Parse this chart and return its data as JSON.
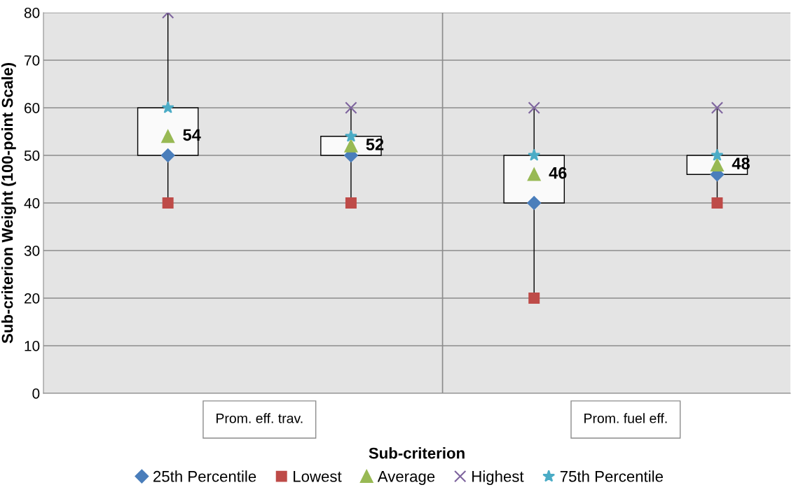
{
  "chart_data": {
    "type": "box",
    "xlabel": "Sub-criterion",
    "ylabel": "Sub-criterion Weight (100-point Scale)",
    "categories": [
      null,
      null,
      null,
      null
    ],
    "boxes": [
      {
        "low": 40,
        "q1": 50,
        "q3": 60,
        "high": 80
      },
      {
        "low": 40,
        "q1": 50,
        "q3": 54,
        "high": 60
      },
      {
        "low": 20,
        "q1": 40,
        "q3": 50,
        "high": 60
      },
      {
        "low": 40,
        "q1": 46,
        "q3": 50,
        "high": 60
      }
    ],
    "series": [
      {
        "name": "25th Percentile",
        "type": "scatter",
        "marker": "diamond",
        "color": "#4a7ebb",
        "values": [
          50,
          50,
          40,
          46
        ]
      },
      {
        "name": "Lowest",
        "type": "scatter",
        "marker": "square",
        "color": "#be4b48",
        "values": [
          40,
          40,
          20,
          40
        ]
      },
      {
        "name": "Average",
        "type": "scatter",
        "marker": "triangle",
        "color": "#98b954",
        "values": [
          54,
          52,
          46,
          48
        ],
        "value_labels": [
          "54",
          "52",
          "46",
          "48"
        ]
      },
      {
        "name": "Highest",
        "type": "scatter",
        "marker": "cross",
        "color": "#7e649e",
        "values": [
          80,
          60,
          60,
          60
        ]
      },
      {
        "name": "75th Percentile",
        "type": "scatter",
        "marker": "star",
        "color": "#4bacc6",
        "values": [
          60,
          54,
          50,
          50
        ]
      }
    ],
    "annotations": [
      "Prom. eff. trav.",
      "Prom. fuel eff."
    ],
    "ylim": [
      0,
      80
    ],
    "yticks": [
      0,
      10,
      20,
      30,
      40,
      50,
      60,
      70,
      80
    ],
    "grid": "y",
    "legend": "bottom"
  }
}
